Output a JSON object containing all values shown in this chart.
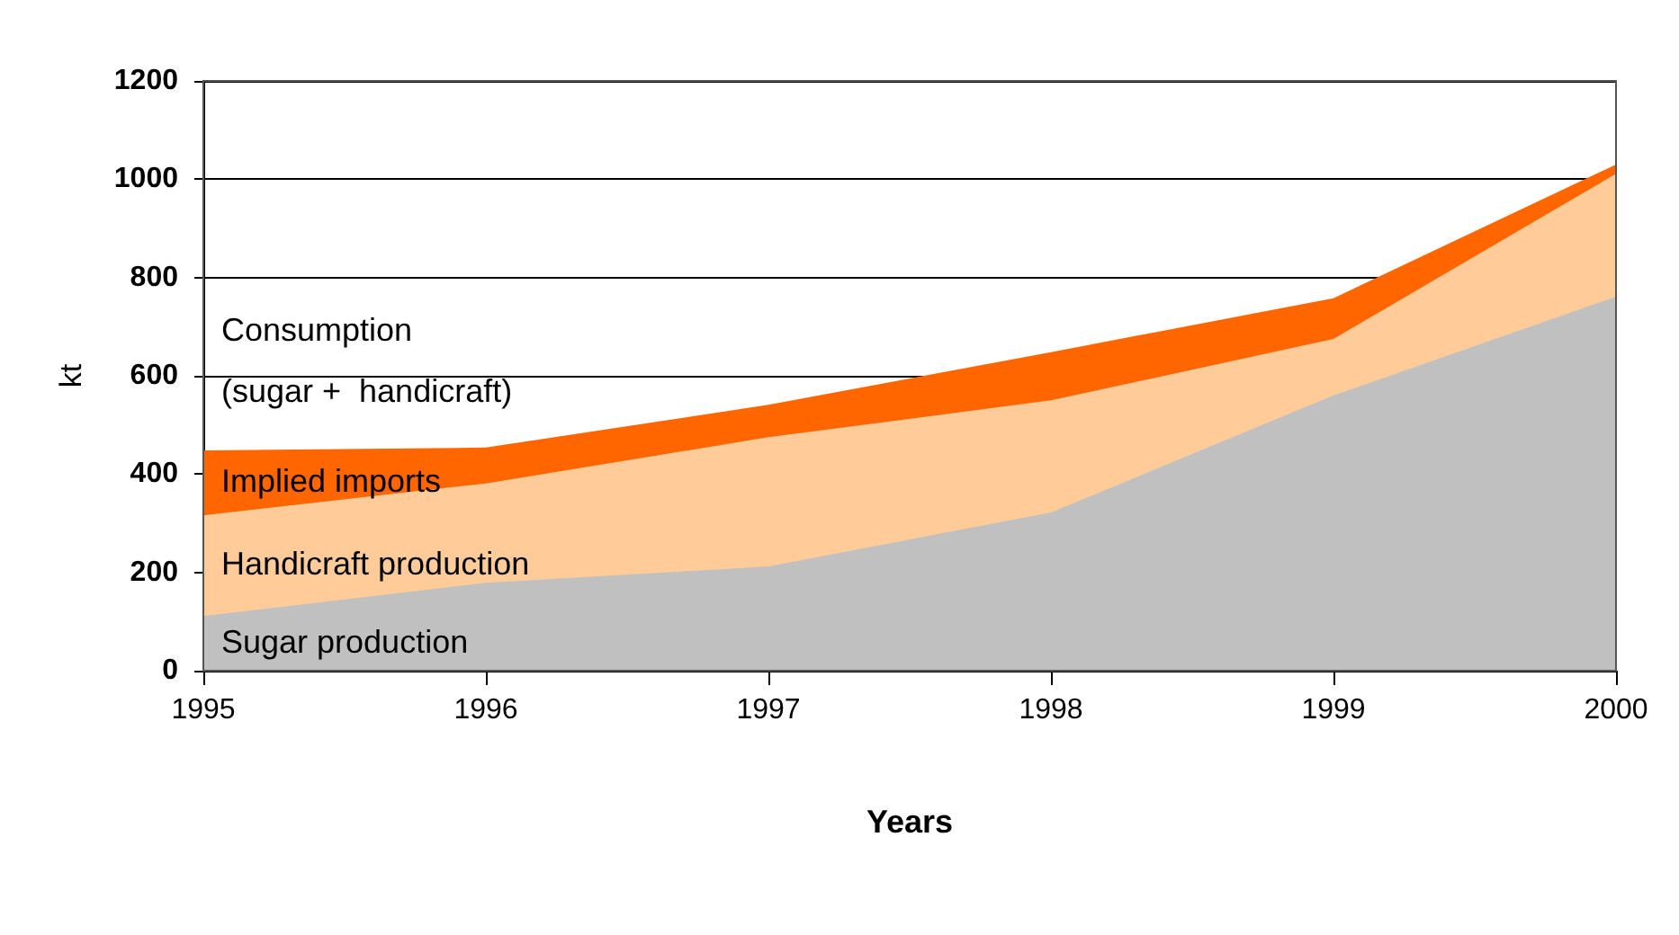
{
  "chart_data": {
    "type": "area",
    "xlabel": "Years",
    "ylabel": "kt",
    "x": [
      1995,
      1996,
      1997,
      1998,
      1999,
      2000
    ],
    "series": [
      {
        "name": "Implied imports",
        "color": "#ff6600",
        "values": [
          448,
          454,
          541,
          648,
          758,
          1030
        ]
      },
      {
        "name": "Handicraft production",
        "color": "#ffcc99",
        "values": [
          316,
          381,
          475,
          550,
          675,
          1011
        ]
      },
      {
        "name": "Sugar production",
        "color": "#c0c0c0",
        "values": [
          111,
          179,
          212,
          322,
          560,
          761
        ]
      }
    ],
    "annotations": [
      "Consumption",
      "(sugar +  handicraft)"
    ],
    "xlim": [
      1995,
      2000
    ],
    "xticks": [
      1995,
      1996,
      1997,
      1998,
      1999,
      2000
    ],
    "ylim": [
      0,
      1200
    ],
    "yticks": [
      0,
      200,
      400,
      600,
      800,
      1000,
      1200
    ],
    "grid": "y",
    "legend": false,
    "marker": "none"
  }
}
